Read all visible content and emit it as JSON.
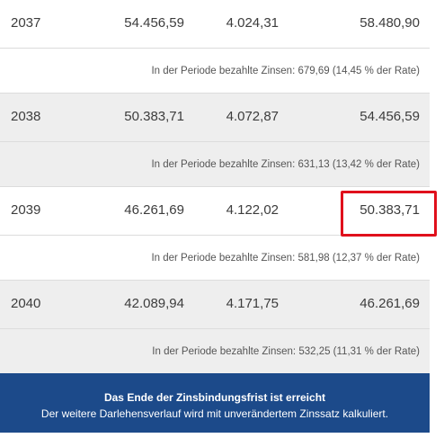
{
  "rows": [
    {
      "year": "2037",
      "rest": "54.456,59",
      "tilgung": "4.024,31",
      "start": "58.480,90",
      "note": "In der Periode bezahlte Zinsen: 679,69 (14,45 % der Rate)"
    },
    {
      "year": "2038",
      "rest": "50.383,71",
      "tilgung": "4.072,87",
      "start": "54.456,59",
      "note": "In der Periode bezahlte Zinsen: 631,13 (13,42 % der Rate)"
    },
    {
      "year": "2039",
      "rest": "46.261,69",
      "tilgung": "4.122,02",
      "start": "50.383,71",
      "note": "In der Periode bezahlte Zinsen: 581,98 (12,37 % der Rate)"
    },
    {
      "year": "2040",
      "rest": "42.089,94",
      "tilgung": "4.171,75",
      "start": "46.261,69",
      "note": "In der Periode bezahlte Zinsen: 532,25 (11,31 % der Rate)"
    }
  ],
  "banner": {
    "title": "Das Ende der Zinsbindungsfrist ist erreicht",
    "text": "Der weitere Darlehensverlauf wird mit unverändertem Zinssatz kalkuliert."
  },
  "colors": {
    "banner_bg": "#1c4a8a",
    "highlight": "#e0101c",
    "row_shade": "#eeeeee"
  }
}
